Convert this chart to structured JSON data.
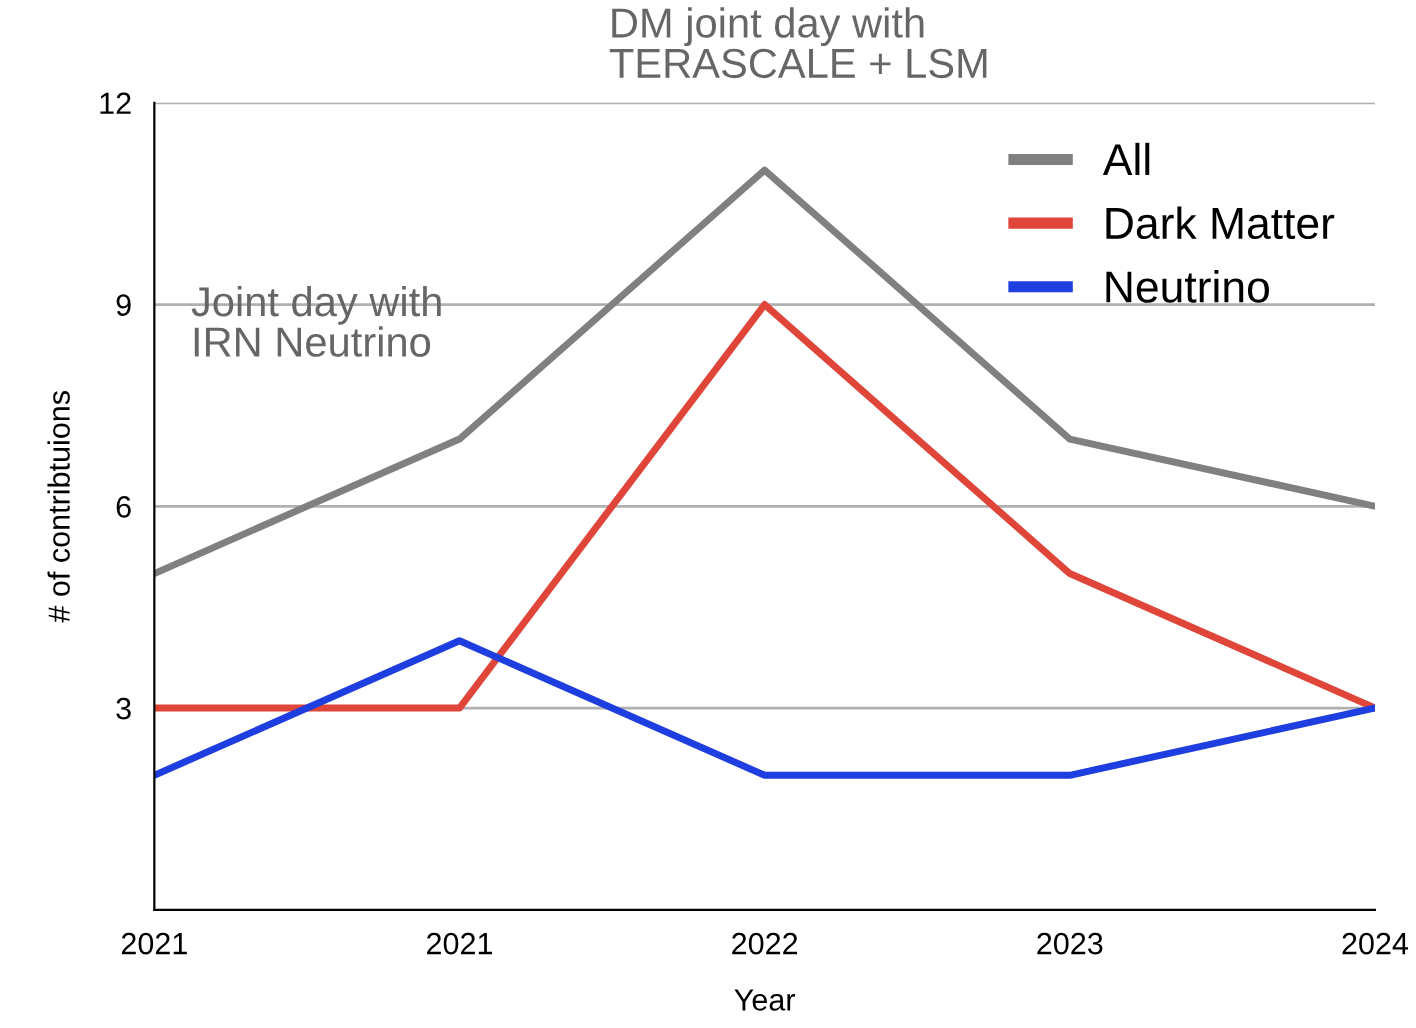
{
  "chart_data": {
    "type": "line",
    "xlabel": "Year",
    "ylabel": "# of contribtuions",
    "categories": [
      "2021",
      "2021",
      "2022",
      "2023",
      "2024"
    ],
    "series": [
      {
        "name": "All",
        "color": "#808080",
        "values": [
          5,
          7,
          11,
          7,
          6
        ]
      },
      {
        "name": "Dark Matter",
        "color": "#e0453a",
        "values": [
          3,
          3,
          9,
          5,
          3
        ]
      },
      {
        "name": "Neutrino",
        "color": "#1f3ee0",
        "values": [
          2,
          4,
          2,
          2,
          3
        ]
      }
    ],
    "ylim": [
      0,
      12
    ],
    "yticks": [
      3,
      6,
      9,
      12
    ],
    "grid": "y",
    "legend": "top right",
    "marker": "none",
    "line_style": "solid",
    "annotations": [
      "DM joint day with\nTERASCALE + LSM",
      "Joint day with\nIRN Neutrino"
    ]
  }
}
